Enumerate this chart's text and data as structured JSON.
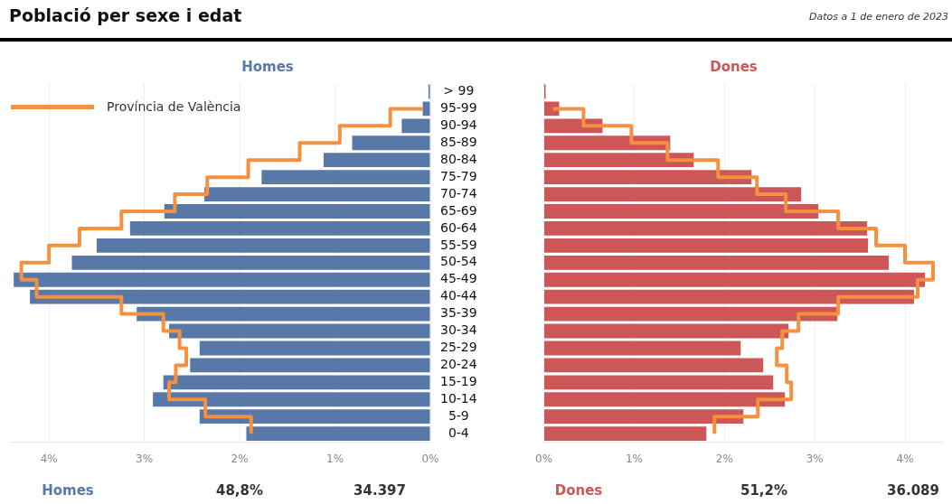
{
  "chart_data": [
    {
      "type": "other",
      "title": "Població per sexe i edat",
      "subtitle": "Datos a 1 de enero de 2023"
    },
    {
      "type": "bar",
      "orientation": "horizontal",
      "title": "Homes",
      "categories": [
        "> 99",
        "95-99",
        "90-94",
        "85-89",
        "80-84",
        "75-79",
        "70-74",
        "65-69",
        "60-64",
        "55-59",
        "50-54",
        "45-49",
        "40-44",
        "35-39",
        "30-34",
        "25-29",
        "20-24",
        "15-19",
        "10-14",
        "5-9",
        "0-4"
      ],
      "series": [
        {
          "color": "#5878a8",
          "values": [
            0.02,
            0.08,
            0.3,
            0.82,
            1.12,
            1.77,
            2.37,
            2.79,
            3.15,
            3.5,
            3.76,
            4.37,
            4.2,
            3.08,
            2.74,
            2.42,
            2.52,
            2.8,
            2.91,
            2.42,
            1.93
          ]
        },
        {
          "type": "step",
          "name": "Província de València",
          "color": "#f5913e",
          "values": [
            null,
            0.08,
            0.42,
            0.95,
            1.37,
            1.91,
            2.34,
            2.68,
            3.24,
            3.68,
            4.0,
            4.29,
            4.13,
            3.24,
            2.8,
            2.63,
            2.56,
            2.67,
            2.74,
            2.36,
            1.88
          ]
        }
      ],
      "xlim": [
        4.4,
        0
      ],
      "xticks": [
        {
          "value": 4,
          "label": "4%"
        },
        {
          "value": 3,
          "label": "3%"
        },
        {
          "value": 2,
          "label": "2%"
        },
        {
          "value": 1,
          "label": "1%"
        },
        {
          "value": 0,
          "label": "0%"
        }
      ],
      "grid": "x",
      "legend": "top left",
      "annotations": [
        "Homes",
        "48,8%",
        "34.397"
      ]
    },
    {
      "type": "bar",
      "orientation": "horizontal",
      "title": "Dones",
      "categories": [
        null,
        null,
        null,
        null,
        null,
        null,
        null,
        null,
        null,
        null,
        null,
        null,
        null,
        null,
        null,
        null,
        null,
        null,
        null,
        null,
        null
      ],
      "series": [
        {
          "color": "#cd5656",
          "values": [
            0.02,
            0.17,
            0.65,
            1.4,
            1.66,
            2.3,
            2.85,
            3.04,
            3.58,
            3.59,
            3.82,
            4.22,
            4.1,
            3.25,
            2.71,
            2.18,
            2.43,
            2.54,
            2.67,
            2.21,
            1.8
          ]
        },
        {
          "type": "step",
          "color": "#f5913e",
          "values": [
            null,
            0.1,
            0.44,
            0.97,
            1.37,
            1.93,
            2.36,
            2.68,
            3.26,
            3.68,
            4.0,
            4.31,
            4.14,
            3.26,
            2.82,
            2.64,
            2.58,
            2.69,
            2.74,
            2.37,
            1.89
          ]
        }
      ],
      "xlim": [
        0,
        4.4
      ],
      "xticks": [
        {
          "value": 0,
          "label": "0%"
        },
        {
          "value": 1,
          "label": "1%"
        },
        {
          "value": 2,
          "label": "2%"
        },
        {
          "value": 3,
          "label": "3%"
        },
        {
          "value": 4,
          "label": "4%"
        }
      ],
      "grid": "x",
      "tick_labels": "x",
      "annotations": [
        "Dones",
        "51,2%",
        "36.089"
      ]
    }
  ]
}
